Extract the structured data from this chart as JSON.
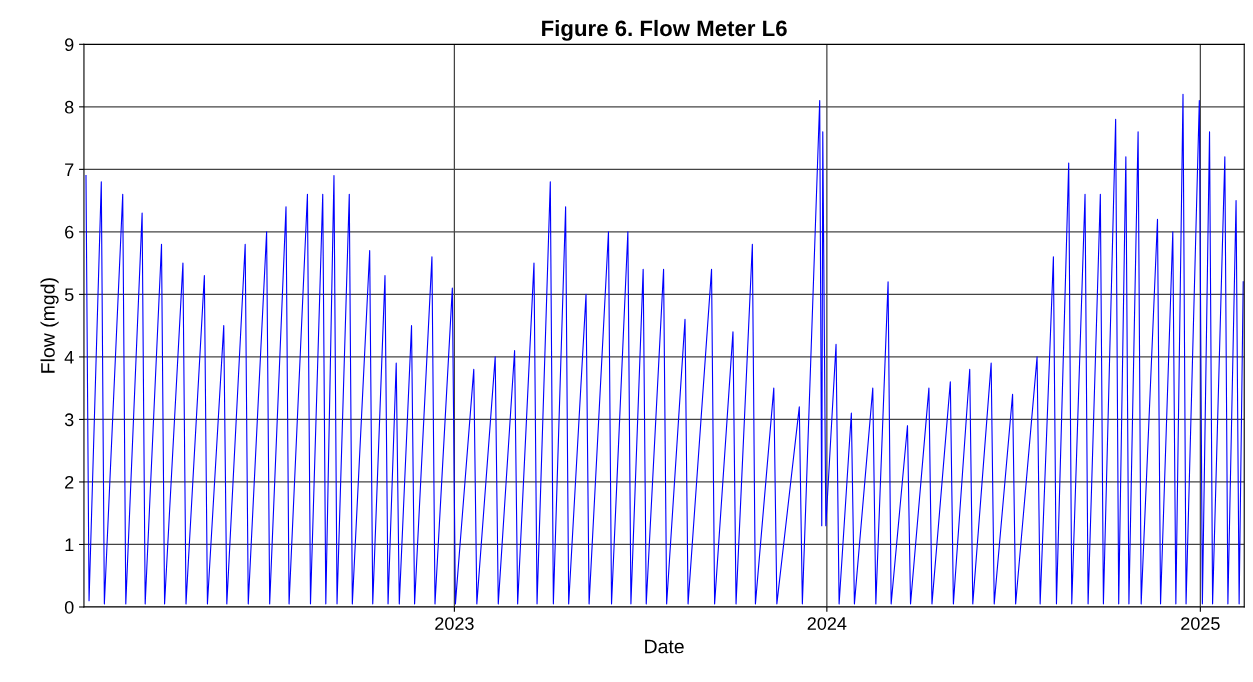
{
  "chart_data": {
    "type": "line",
    "title": "Figure 6. Flow Meter L6",
    "xlabel": "Date",
    "ylabel": "Flow (mgd)",
    "xlim": [
      "2022-01-03",
      "2025-02-13"
    ],
    "ylim": [
      0,
      9
    ],
    "yticks": [
      0,
      1,
      2,
      3,
      4,
      5,
      6,
      7,
      8,
      9
    ],
    "xticks": [
      {
        "value": "2023-01-01",
        "label": "2023"
      },
      {
        "value": "2024-01-01",
        "label": "2024"
      },
      {
        "value": "2025-01-01",
        "label": "2025"
      }
    ],
    "grid": true,
    "marker": "none",
    "line_style": "solid",
    "series": [
      {
        "color": "#0000ff",
        "x": [
          "2022-01-05",
          "2022-01-08",
          "2022-01-20",
          "2022-01-23",
          "2022-02-10",
          "2022-02-13",
          "2022-03-01",
          "2022-03-04",
          "2022-03-20",
          "2022-03-23",
          "2022-04-10",
          "2022-04-13",
          "2022-05-01",
          "2022-05-04",
          "2022-05-20",
          "2022-05-23",
          "2022-06-10",
          "2022-06-13",
          "2022-07-01",
          "2022-07-04",
          "2022-07-20",
          "2022-07-23",
          "2022-08-10",
          "2022-08-13",
          "2022-08-25",
          "2022-08-28",
          "2022-09-05",
          "2022-09-08",
          "2022-09-20",
          "2022-09-23",
          "2022-10-10",
          "2022-10-13",
          "2022-10-25",
          "2022-10-28",
          "2022-11-05",
          "2022-11-08",
          "2022-11-20",
          "2022-11-23",
          "2022-12-10",
          "2022-12-13",
          "2022-12-30",
          "2023-01-02",
          "2023-01-20",
          "2023-01-23",
          "2023-02-10",
          "2023-02-13",
          "2023-03-01",
          "2023-03-04",
          "2023-03-20",
          "2023-03-23",
          "2023-04-05",
          "2023-04-08",
          "2023-04-20",
          "2023-04-23",
          "2023-05-10",
          "2023-05-13",
          "2023-06-01",
          "2023-06-04",
          "2023-06-20",
          "2023-06-23",
          "2023-07-05",
          "2023-07-08",
          "2023-07-25",
          "2023-07-28",
          "2023-08-15",
          "2023-08-18",
          "2023-09-10",
          "2023-09-13",
          "2023-10-01",
          "2023-10-04",
          "2023-10-20",
          "2023-10-23",
          "2023-11-10",
          "2023-11-13",
          "2023-12-05",
          "2023-12-08",
          "2023-12-25",
          "2023-12-27",
          "2023-12-28",
          "2023-12-31",
          "2024-01-10",
          "2024-01-13",
          "2024-01-25",
          "2024-01-28",
          "2024-02-15",
          "2024-02-18",
          "2024-03-01",
          "2024-03-04",
          "2024-03-20",
          "2024-03-23",
          "2024-04-10",
          "2024-04-13",
          "2024-05-01",
          "2024-05-04",
          "2024-05-20",
          "2024-05-23",
          "2024-06-10",
          "2024-06-13",
          "2024-07-01",
          "2024-07-04",
          "2024-07-25",
          "2024-07-28",
          "2024-08-10",
          "2024-08-13",
          "2024-08-25",
          "2024-08-28",
          "2024-09-10",
          "2024-09-13",
          "2024-09-25",
          "2024-09-28",
          "2024-10-10",
          "2024-10-13",
          "2024-10-20",
          "2024-10-23",
          "2024-11-01",
          "2024-11-04",
          "2024-11-20",
          "2024-11-23",
          "2024-12-05",
          "2024-12-08",
          "2024-12-15",
          "2024-12-18",
          "2024-12-31",
          "2025-01-03",
          "2025-01-10",
          "2025-01-13",
          "2025-01-25",
          "2025-01-28",
          "2025-02-05",
          "2025-02-08",
          "2025-02-12"
        ],
        "values": [
          6.9,
          0.1,
          6.8,
          0.05,
          6.6,
          0.05,
          6.3,
          0.05,
          5.8,
          0.05,
          5.5,
          0.05,
          5.3,
          0.05,
          4.5,
          0.05,
          5.8,
          0.05,
          6.0,
          0.05,
          6.4,
          0.05,
          6.6,
          0.05,
          6.6,
          0.05,
          6.9,
          0.05,
          6.6,
          0.05,
          5.7,
          0.05,
          5.3,
          0.05,
          3.9,
          0.05,
          4.5,
          0.05,
          5.6,
          0.05,
          5.1,
          0.05,
          3.8,
          0.05,
          4.0,
          0.05,
          4.1,
          0.05,
          5.5,
          0.05,
          6.8,
          0.05,
          6.4,
          0.05,
          5.0,
          0.05,
          6.0,
          0.05,
          6.0,
          0.05,
          5.4,
          0.05,
          5.4,
          0.05,
          4.6,
          0.05,
          5.4,
          0.05,
          4.4,
          0.05,
          5.8,
          0.05,
          3.5,
          0.05,
          3.2,
          0.05,
          8.1,
          1.3,
          7.6,
          1.3,
          4.2,
          0.05,
          3.1,
          0.05,
          3.5,
          0.05,
          5.2,
          0.05,
          2.9,
          0.05,
          3.5,
          0.05,
          3.6,
          0.05,
          3.8,
          0.05,
          3.9,
          0.05,
          3.4,
          0.05,
          4.0,
          0.05,
          5.6,
          0.05,
          7.1,
          0.05,
          6.6,
          0.05,
          6.6,
          0.05,
          7.8,
          0.05,
          7.2,
          0.05,
          7.6,
          0.05,
          6.2,
          0.05,
          6.0,
          0.05,
          8.2,
          0.05,
          8.1,
          0.05,
          7.6,
          0.05,
          7.2,
          0.05,
          6.5,
          0.05,
          5.2
        ]
      }
    ]
  }
}
